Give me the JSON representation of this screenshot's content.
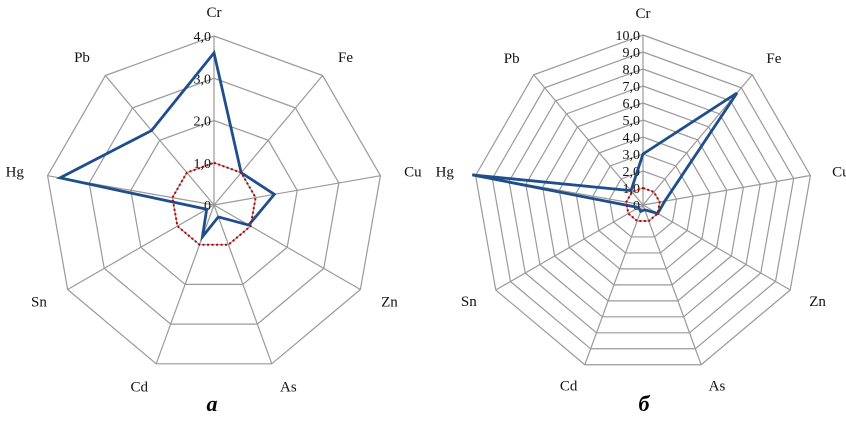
{
  "chart_data": [
    {
      "type": "radar",
      "panel_label": "а",
      "categories": [
        "Cr",
        "Fe",
        "Cu",
        "Zn",
        "As",
        "Cd",
        "Sn",
        "Hg",
        "Pb"
      ],
      "ticks": [
        "0",
        "1,0",
        "2,0",
        "3,0",
        "4,0"
      ],
      "rmax": 4.0,
      "series": [
        {
          "values": [
            3.6,
            1.0,
            1.45,
            0.95,
            0.3,
            0.8,
            0.2,
            3.7,
            2.3
          ],
          "color": "#1f4e8c",
          "style": "solid"
        },
        {
          "values": [
            1,
            1,
            1,
            1,
            1,
            1,
            1,
            1,
            1
          ],
          "color": "#c00000",
          "style": "dotted"
        }
      ]
    },
    {
      "type": "radar",
      "panel_label": "б",
      "categories": [
        "Cr",
        "Fe",
        "Cu",
        "Zn",
        "As",
        "Cd",
        "Sn",
        "Hg",
        "Pb"
      ],
      "ticks": [
        "0",
        "1,0",
        "2,0",
        "3,0",
        "4,0",
        "5,0",
        "6,0",
        "7,0",
        "8,0",
        "9,0",
        "10,0"
      ],
      "rmax": 10.0,
      "series": [
        {
          "values": [
            3.0,
            8.6,
            1.3,
            1.0,
            0.3,
            0.4,
            0.3,
            10.2,
            1.1
          ],
          "color": "#1f4e8c",
          "style": "solid"
        },
        {
          "values": [
            1,
            1,
            1,
            1,
            1,
            1,
            1,
            1,
            1
          ],
          "color": "#c00000",
          "style": "dotted"
        }
      ]
    }
  ]
}
